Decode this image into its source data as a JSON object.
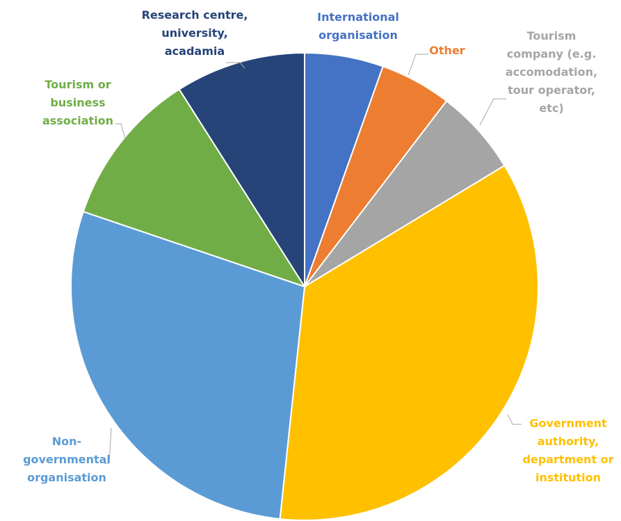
{
  "chart_data": {
    "type": "pie",
    "title": "",
    "slices": [
      {
        "label": [
          "International",
          "organisation"
        ],
        "value": 5.5,
        "color": "#4472C4"
      },
      {
        "label": [
          "Other"
        ],
        "value": 5.0,
        "color": "#ED7D31"
      },
      {
        "label": [
          "Tourism",
          "company (e.g.",
          "accomodation,",
          "tour operator,",
          "etc)"
        ],
        "value": 6.0,
        "color": "#A5A5A5"
      },
      {
        "label": [
          "Government",
          "authority,",
          "department or",
          "institution"
        ],
        "value": 35.7,
        "color": "#FFC000"
      },
      {
        "label": [
          "Non-",
          "governmental",
          "organisation"
        ],
        "value": 28.8,
        "color": "#5B9BD5"
      },
      {
        "label": [
          "Tourism or",
          "business",
          "association"
        ],
        "value": 10.9,
        "color": "#70AD47"
      },
      {
        "label": [
          "Research centre,",
          "university,",
          "acadamia"
        ],
        "value": 9.1,
        "color": "#264478"
      }
    ],
    "label_colors": [
      "#4472C4",
      "#ED7D31",
      "#A5A5A5",
      "#FFC000",
      "#5B9BD5",
      "#70AD47",
      "#264478"
    ]
  }
}
